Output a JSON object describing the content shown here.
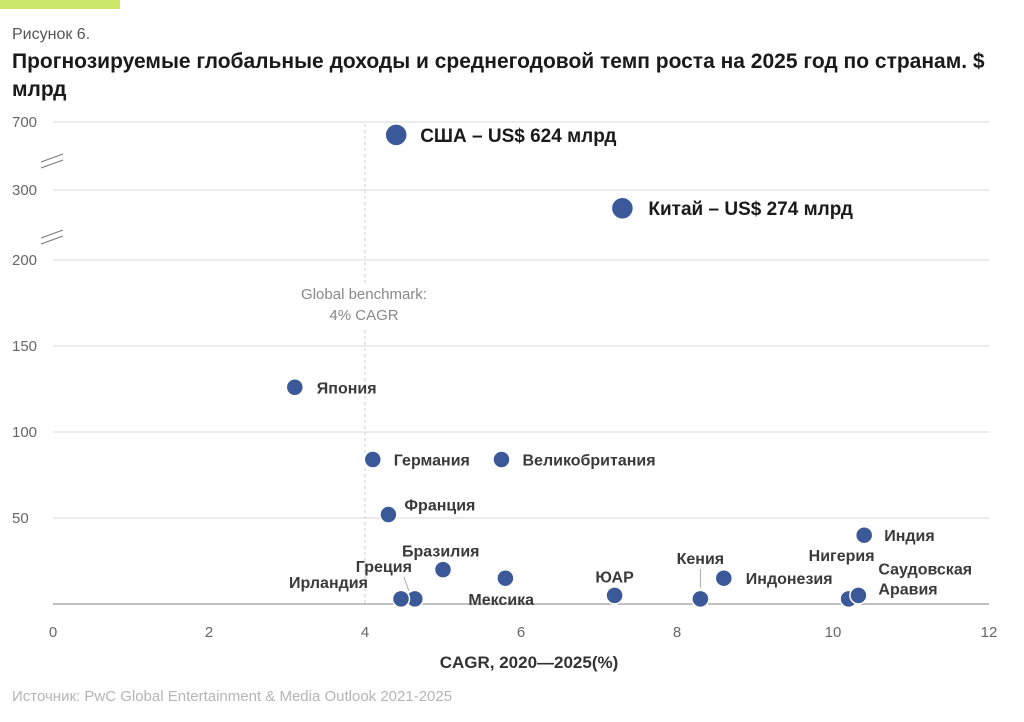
{
  "header": {
    "figure_number": "Рисунок 6.",
    "title": "Прогнозируемые глобальные доходы и среднегодовой темп роста на 2025 год по странам. $ млрд"
  },
  "source": "Источник: PwC Global Entertainment & Media Outlook 2021-2025",
  "chart_data": {
    "type": "scatter",
    "title": "Прогнозируемые глобальные доходы и среднегодовой темп роста на 2025 год по странам. $ млрд",
    "xlabel": "CAGR, 2020—2025(%)",
    "ylabel": "",
    "xlim": [
      0,
      12
    ],
    "x_ticks": [
      "0",
      "2",
      "4",
      "6",
      "8",
      "10",
      "12"
    ],
    "y_ticks": [
      "700",
      "300",
      "200",
      "150",
      "100",
      "50"
    ],
    "y_axis_broken": true,
    "grid": true,
    "benchmark": {
      "x": 4,
      "label_line1": "Global benchmark:",
      "label_line2": "4% CAGR"
    },
    "colors": {
      "marker": "#3b5998",
      "grid": "#d9d9d9",
      "accent": "#cbe868"
    },
    "points": [
      {
        "label": "США – US$ 624 млрд",
        "x": 4.4,
        "y": 624,
        "big": true
      },
      {
        "label": "Китай – US$ 274 млрд",
        "x": 7.3,
        "y": 274,
        "big": true
      },
      {
        "label": "Япония",
        "x": 3.1,
        "y": 126
      },
      {
        "label": "Германия",
        "x": 4.1,
        "y": 84
      },
      {
        "label": "Великобритания",
        "x": 5.75,
        "y": 84
      },
      {
        "label": "Франция",
        "x": 4.3,
        "y": 52
      },
      {
        "label": "Индия",
        "x": 10.4,
        "y": 40
      },
      {
        "label": "Бразилия",
        "x": 5.0,
        "y": 20
      },
      {
        "label": "Мексика",
        "x": 5.8,
        "y": 15
      },
      {
        "label": "ЮАР",
        "x": 7.2,
        "y": 5
      },
      {
        "label": "Кения",
        "x": 8.3,
        "y": 3
      },
      {
        "label": "Индонезия",
        "x": 8.6,
        "y": 15
      },
      {
        "label": "Нигерия",
        "x": 10.2,
        "y": 3
      },
      {
        "label": "Саудовская",
        "x": 10.3,
        "y": 5
      },
      {
        "label": "Аравия",
        "x": 10.3,
        "y": 5
      },
      {
        "label": "Греция",
        "x": 4.6,
        "y": 3
      },
      {
        "label": "Ирландия",
        "x": 4.5,
        "y": 3
      }
    ]
  }
}
